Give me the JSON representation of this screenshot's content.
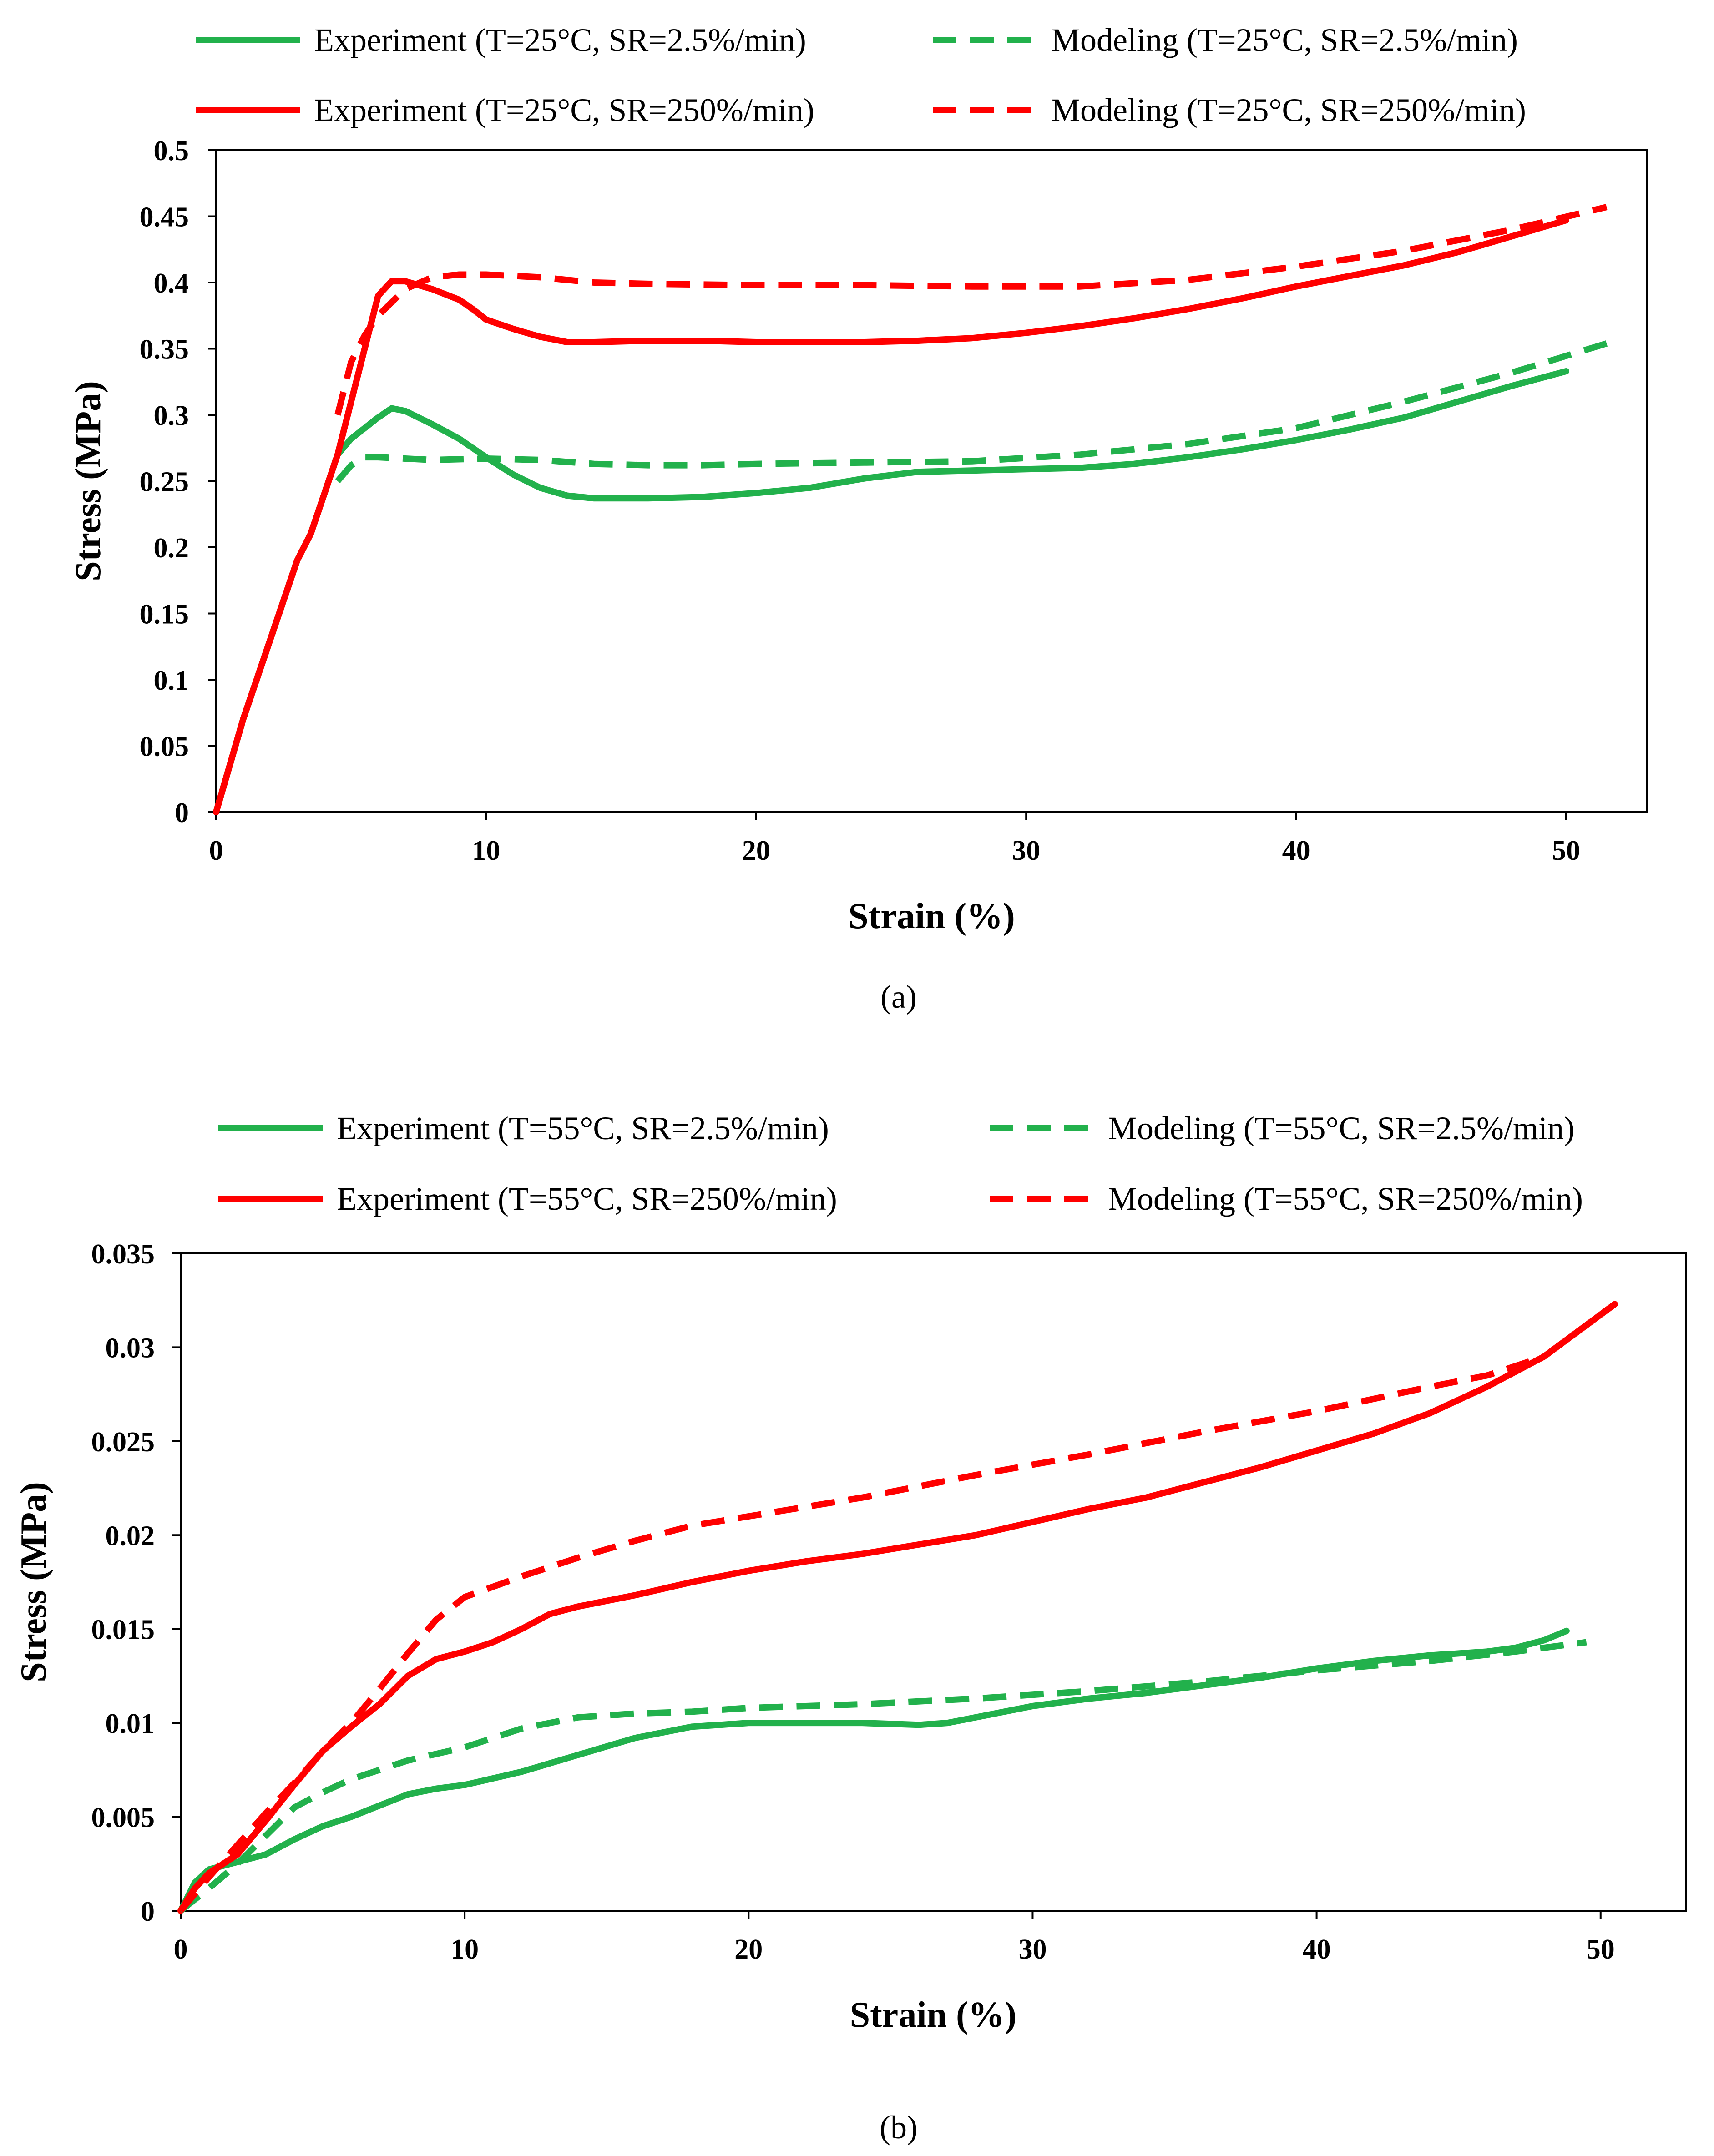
{
  "chart_data": [
    {
      "type": "line",
      "caption": "(a)",
      "xlabel": "Strain (%)",
      "ylabel": "Stress (MPa)",
      "xlim": [
        0,
        53
      ],
      "ylim": [
        0,
        0.5
      ],
      "xticks": [
        "0",
        "10",
        "20",
        "30",
        "40",
        "50"
      ],
      "xtick_values": [
        0,
        10,
        20,
        30,
        40,
        50
      ],
      "yticks": [
        "0",
        "0.05",
        "0.1",
        "0.15",
        "0.2",
        "0.25",
        "0.3",
        "0.35",
        "0.4",
        "0.45",
        "0.5"
      ],
      "ytick_values": [
        0,
        0.05,
        0.1,
        0.15,
        0.2,
        0.25,
        0.3,
        0.35,
        0.4,
        0.45,
        0.5
      ],
      "legend_position": "top",
      "series": [
        {
          "name": "Experiment (T=25°C, SR=2.5%/min)",
          "color": "#22b14c",
          "style": "solid",
          "x": [
            0,
            1,
            2,
            3,
            3.5,
            4,
            4.5,
            5,
            6,
            6.5,
            7,
            8,
            9,
            10,
            11,
            12,
            13,
            14,
            16,
            18,
            20,
            22,
            24,
            26,
            28,
            30,
            32,
            34,
            36,
            38,
            40,
            42,
            44,
            46,
            48,
            50
          ],
          "y": [
            0,
            0.07,
            0.13,
            0.19,
            0.21,
            0.24,
            0.27,
            0.282,
            0.298,
            0.305,
            0.303,
            0.293,
            0.282,
            0.268,
            0.255,
            0.245,
            0.239,
            0.237,
            0.237,
            0.238,
            0.241,
            0.245,
            0.252,
            0.257,
            0.258,
            0.259,
            0.26,
            0.263,
            0.268,
            0.274,
            0.281,
            0.289,
            0.298,
            0.31,
            0.322,
            0.333
          ]
        },
        {
          "name": "Experiment (T=25°C, SR=250%/min)",
          "color": "#ff0000",
          "style": "solid",
          "x": [
            0,
            1,
            2,
            3,
            3.5,
            4,
            4.5,
            5,
            5.5,
            6,
            6.5,
            7,
            8,
            9,
            9.5,
            10,
            11,
            12,
            13,
            14,
            16,
            18,
            20,
            22,
            24,
            26,
            28,
            30,
            32,
            34,
            36,
            38,
            40,
            42,
            44,
            46,
            48,
            50
          ],
          "y": [
            0,
            0.07,
            0.13,
            0.19,
            0.21,
            0.24,
            0.27,
            0.31,
            0.35,
            0.39,
            0.401,
            0.401,
            0.395,
            0.387,
            0.38,
            0.372,
            0.365,
            0.359,
            0.355,
            0.355,
            0.356,
            0.356,
            0.355,
            0.355,
            0.355,
            0.356,
            0.358,
            0.362,
            0.367,
            0.373,
            0.38,
            0.388,
            0.397,
            0.405,
            0.413,
            0.423,
            0.435,
            0.447
          ]
        },
        {
          "name": "Modeling (T=25°C, SR=2.5%/min)",
          "color": "#22b14c",
          "style": "dashed",
          "x": [
            4.5,
            5,
            5.5,
            6,
            7,
            8,
            10,
            12,
            14,
            16,
            18,
            20,
            24,
            28,
            32,
            36,
            40,
            44,
            48,
            51.5
          ],
          "y": [
            0.25,
            0.262,
            0.268,
            0.268,
            0.267,
            0.266,
            0.267,
            0.266,
            0.263,
            0.262,
            0.262,
            0.263,
            0.264,
            0.265,
            0.27,
            0.278,
            0.29,
            0.31,
            0.332,
            0.354
          ]
        },
        {
          "name": "Modeling (T=25°C, SR=250%/min)",
          "color": "#ff0000",
          "style": "dashed",
          "x": [
            4.5,
            5,
            5.5,
            6,
            6.5,
            7,
            8,
            9,
            10,
            12,
            14,
            16,
            20,
            24,
            28,
            32,
            36,
            40,
            44,
            48,
            51.5
          ],
          "y": [
            0.3,
            0.34,
            0.36,
            0.375,
            0.385,
            0.395,
            0.404,
            0.406,
            0.406,
            0.404,
            0.4,
            0.399,
            0.398,
            0.398,
            0.397,
            0.397,
            0.402,
            0.412,
            0.424,
            0.44,
            0.457
          ]
        }
      ]
    },
    {
      "type": "line",
      "caption": "(b)",
      "xlabel": "Strain (%)",
      "ylabel": "Stress (MPa)",
      "xlim": [
        0,
        53
      ],
      "ylim": [
        0,
        0.035
      ],
      "xticks": [
        "0",
        "10",
        "20",
        "30",
        "40",
        "50"
      ],
      "xtick_values": [
        0,
        10,
        20,
        30,
        40,
        50
      ],
      "yticks": [
        "0",
        "0.005",
        "0.01",
        "0.015",
        "0.02",
        "0.025",
        "0.03",
        "0.035"
      ],
      "ytick_values": [
        0,
        0.005,
        0.01,
        0.015,
        0.02,
        0.025,
        0.03,
        0.035
      ],
      "legend_position": "top",
      "series": [
        {
          "name": "Experiment (T=55°C, SR=2.5%/min)",
          "color": "#22b14c",
          "style": "solid",
          "x": [
            0,
            0.5,
            1,
            2,
            3,
            4,
            5,
            6,
            7,
            8,
            9,
            10,
            12,
            14,
            16,
            18,
            20,
            22,
            24,
            26,
            27,
            28,
            30,
            32,
            34,
            36,
            38,
            40,
            42,
            44,
            46,
            47,
            48,
            48.8
          ],
          "y": [
            0,
            0.0015,
            0.0022,
            0.0026,
            0.003,
            0.0038,
            0.0045,
            0.005,
            0.0056,
            0.0062,
            0.0065,
            0.0067,
            0.0074,
            0.0083,
            0.0092,
            0.0098,
            0.01,
            0.01,
            0.01,
            0.0099,
            0.01,
            0.0103,
            0.0109,
            0.0113,
            0.0116,
            0.012,
            0.0124,
            0.0129,
            0.0133,
            0.0136,
            0.0138,
            0.014,
            0.0144,
            0.0149
          ]
        },
        {
          "name": "Experiment (T=55°C, SR=250%/min)",
          "color": "#ff0000",
          "style": "solid",
          "x": [
            0,
            0.5,
            1,
            2,
            3,
            4,
            5,
            6,
            7,
            8,
            9,
            10,
            11,
            12,
            13,
            14,
            16,
            18,
            20,
            22,
            24,
            26,
            28,
            30,
            32,
            34,
            36,
            38,
            40,
            42,
            44,
            46,
            48,
            50.5
          ],
          "y": [
            0,
            0.0012,
            0.002,
            0.003,
            0.0048,
            0.0067,
            0.0085,
            0.0098,
            0.011,
            0.0125,
            0.0134,
            0.0138,
            0.0143,
            0.015,
            0.0158,
            0.0162,
            0.0168,
            0.0175,
            0.0181,
            0.0186,
            0.019,
            0.0195,
            0.02,
            0.0207,
            0.0214,
            0.022,
            0.0228,
            0.0236,
            0.0245,
            0.0254,
            0.0265,
            0.0279,
            0.0295,
            0.0323
          ]
        },
        {
          "name": "Modeling (T=55°C, SR=2.5%/min)",
          "color": "#22b14c",
          "style": "dashed",
          "x": [
            0,
            1,
            2,
            3,
            4,
            5,
            6,
            7,
            8,
            10,
            12,
            14,
            16,
            18,
            20,
            24,
            28,
            32,
            36,
            40,
            44,
            47,
            49.5
          ],
          "y": [
            0,
            0.0012,
            0.0025,
            0.004,
            0.0055,
            0.0063,
            0.007,
            0.0075,
            0.008,
            0.0087,
            0.0097,
            0.0103,
            0.0105,
            0.0106,
            0.0108,
            0.011,
            0.0113,
            0.0117,
            0.0122,
            0.0128,
            0.0133,
            0.0138,
            0.0143
          ]
        },
        {
          "name": "Modeling (T=55°C, SR=250%/min)",
          "color": "#ff0000",
          "style": "dashed",
          "x": [
            0,
            1,
            2,
            3,
            4,
            5,
            6,
            7,
            8,
            9,
            10,
            12,
            14,
            16,
            18,
            20,
            24,
            28,
            32,
            36,
            40,
            44,
            46,
            48,
            50.5
          ],
          "y": [
            0,
            0.0018,
            0.0035,
            0.0052,
            0.0068,
            0.0085,
            0.01,
            0.0118,
            0.0137,
            0.0155,
            0.0167,
            0.0178,
            0.0188,
            0.0197,
            0.0205,
            0.021,
            0.022,
            0.0232,
            0.0243,
            0.0255,
            0.0266,
            0.0279,
            0.0285,
            0.0295,
            0.0323
          ]
        }
      ]
    }
  ]
}
